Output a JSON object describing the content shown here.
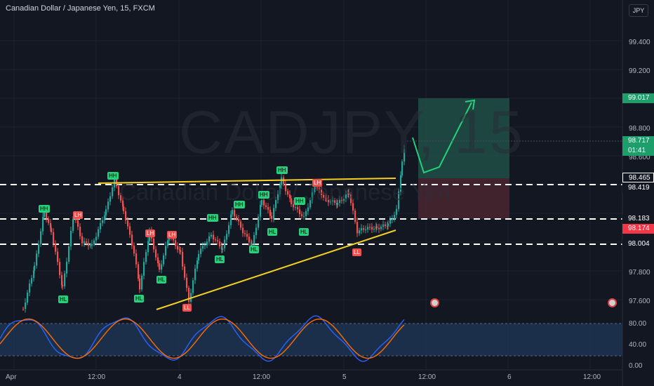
{
  "header": {
    "title": "Canadian Dollar / Japanese Yen, 15, FXCM",
    "currency_button": "JPY"
  },
  "watermark": {
    "symbol": "CADJPY, 15",
    "name": "Canadian Dollar / Japanese Yen"
  },
  "price_axis": {
    "labels": [
      "99.400",
      "99.200",
      "98.800",
      "98.600",
      "97.800",
      "97.600"
    ],
    "tags": [
      {
        "text": "99.017",
        "color": "#1e9e6a"
      },
      {
        "text": "98.717",
        "sub": "01:41",
        "color": "#1e9e6a"
      },
      {
        "text": "98.465",
        "color": "#131722"
      },
      {
        "text": "98.419",
        "color": "#131722"
      },
      {
        "text": "98.183",
        "color": "#131722"
      },
      {
        "text": "98.174",
        "color": "#f23645"
      },
      {
        "text": "98.004",
        "color": "#131722"
      }
    ]
  },
  "oscillator_axis": {
    "labels": [
      "80.00",
      "40.00",
      "0.00"
    ]
  },
  "time_axis": {
    "labels": [
      "Apr",
      "12:00",
      "4",
      "12:00",
      "5",
      "12:00",
      "6",
      "12:00"
    ]
  },
  "markers": [
    {
      "text": "HH",
      "kind": "g"
    },
    {
      "text": "LH",
      "kind": "r"
    },
    {
      "text": "HL",
      "kind": "g"
    },
    {
      "text": "LH",
      "kind": "r"
    },
    {
      "text": "LH",
      "kind": "r"
    },
    {
      "text": "HL",
      "kind": "g"
    },
    {
      "text": "HL",
      "kind": "g"
    },
    {
      "text": "HH",
      "kind": "g"
    },
    {
      "text": "HH",
      "kind": "g"
    },
    {
      "text": "HL",
      "kind": "g"
    },
    {
      "text": "LL",
      "kind": "r"
    },
    {
      "text": "HH",
      "kind": "g"
    },
    {
      "text": "HL",
      "kind": "g"
    },
    {
      "text": "HH",
      "kind": "g"
    },
    {
      "text": "HH",
      "kind": "g"
    },
    {
      "text": "HL",
      "kind": "g"
    },
    {
      "text": "HH",
      "kind": "g"
    },
    {
      "text": "LH",
      "kind": "r"
    },
    {
      "text": "HL",
      "kind": "g"
    },
    {
      "text": "HL",
      "kind": "g"
    },
    {
      "text": "LL",
      "kind": "r"
    }
  ],
  "colors": {
    "background": "#131722",
    "up": "#26a69a",
    "down": "#ef5350",
    "trend": "#f5d020",
    "target": "#1f4f44",
    "stop": "#4a2630"
  }
}
